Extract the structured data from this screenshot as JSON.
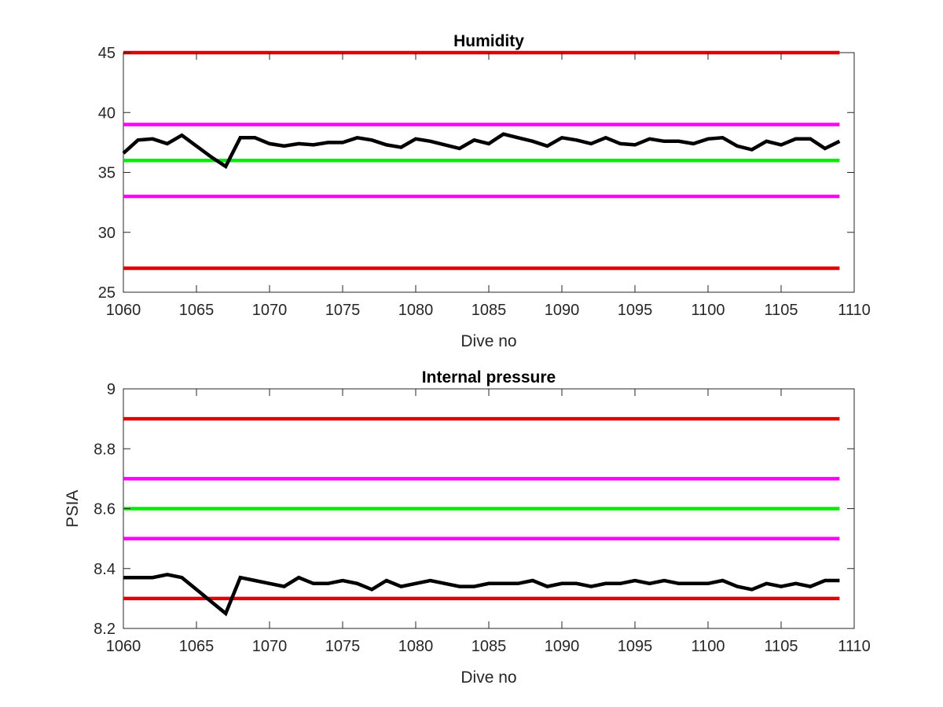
{
  "figure": {
    "background": "#ffffff"
  },
  "chart_data": [
    {
      "type": "line",
      "title": "Humidity",
      "xlabel": "Dive no",
      "ylabel": "",
      "xlim": [
        1060,
        1110
      ],
      "ylim": [
        25,
        45
      ],
      "x_ticks": [
        1060,
        1065,
        1070,
        1075,
        1080,
        1085,
        1090,
        1095,
        1100,
        1105,
        1110
      ],
      "y_ticks": [
        25,
        30,
        35,
        40,
        45
      ],
      "y_tick_labels": [
        "25",
        "30",
        "35",
        "40",
        "45"
      ],
      "grid": false,
      "reference_lines": [
        {
          "y": 45,
          "color": "#e00000"
        },
        {
          "y": 39,
          "color": "#ff00ff"
        },
        {
          "y": 36,
          "color": "#00ee00"
        },
        {
          "y": 33,
          "color": "#ff00ff"
        },
        {
          "y": 27,
          "color": "#e00000"
        }
      ],
      "series": [
        {
          "color": "#000000",
          "x": [
            1060,
            1061,
            1062,
            1063,
            1064,
            1065,
            1066,
            1067,
            1068,
            1069,
            1070,
            1071,
            1072,
            1073,
            1074,
            1075,
            1076,
            1077,
            1078,
            1079,
            1080,
            1081,
            1082,
            1083,
            1084,
            1085,
            1086,
            1087,
            1088,
            1089,
            1090,
            1091,
            1092,
            1093,
            1094,
            1095,
            1096,
            1097,
            1098,
            1099,
            1100,
            1101,
            1102,
            1103,
            1104,
            1105,
            1106,
            1107,
            1108,
            1109
          ],
          "y": [
            36.6,
            37.7,
            37.8,
            37.4,
            38.1,
            37.2,
            36.3,
            35.5,
            37.9,
            37.9,
            37.4,
            37.2,
            37.4,
            37.3,
            37.5,
            37.5,
            37.9,
            37.7,
            37.3,
            37.1,
            37.8,
            37.6,
            37.3,
            37.0,
            37.7,
            37.4,
            38.2,
            37.9,
            37.6,
            37.2,
            37.9,
            37.7,
            37.4,
            37.9,
            37.4,
            37.3,
            37.8,
            37.6,
            37.6,
            37.4,
            37.8,
            37.9,
            37.2,
            36.9,
            37.6,
            37.3,
            37.8,
            37.8,
            37.0,
            37.6
          ]
        }
      ]
    },
    {
      "type": "line",
      "title": "Internal pressure",
      "xlabel": "Dive no",
      "ylabel": "PSIA",
      "xlim": [
        1060,
        1110
      ],
      "ylim": [
        8.2,
        9
      ],
      "x_ticks": [
        1060,
        1065,
        1070,
        1075,
        1080,
        1085,
        1090,
        1095,
        1100,
        1105,
        1110
      ],
      "y_ticks": [
        8.2,
        8.4,
        8.6,
        8.8,
        9
      ],
      "y_tick_labels": [
        "8.2",
        "8.4",
        "8.6",
        "8.8",
        "9"
      ],
      "grid": false,
      "reference_lines": [
        {
          "y": 8.9,
          "color": "#e00000"
        },
        {
          "y": 8.7,
          "color": "#ff00ff"
        },
        {
          "y": 8.6,
          "color": "#00ee00"
        },
        {
          "y": 8.5,
          "color": "#ff00ff"
        },
        {
          "y": 8.3,
          "color": "#e00000"
        }
      ],
      "series": [
        {
          "color": "#000000",
          "x": [
            1060,
            1061,
            1062,
            1063,
            1064,
            1065,
            1066,
            1067,
            1068,
            1069,
            1070,
            1071,
            1072,
            1073,
            1074,
            1075,
            1076,
            1077,
            1078,
            1079,
            1080,
            1081,
            1082,
            1083,
            1084,
            1085,
            1086,
            1087,
            1088,
            1089,
            1090,
            1091,
            1092,
            1093,
            1094,
            1095,
            1096,
            1097,
            1098,
            1099,
            1100,
            1101,
            1102,
            1103,
            1104,
            1105,
            1106,
            1107,
            1108,
            1109
          ],
          "y": [
            8.37,
            8.37,
            8.37,
            8.38,
            8.37,
            8.33,
            8.29,
            8.25,
            8.37,
            8.36,
            8.35,
            8.34,
            8.37,
            8.35,
            8.35,
            8.36,
            8.35,
            8.33,
            8.36,
            8.34,
            8.35,
            8.36,
            8.35,
            8.34,
            8.34,
            8.35,
            8.35,
            8.35,
            8.36,
            8.34,
            8.35,
            8.35,
            8.34,
            8.35,
            8.35,
            8.36,
            8.35,
            8.36,
            8.35,
            8.35,
            8.35,
            8.36,
            8.34,
            8.33,
            8.35,
            8.34,
            8.35,
            8.34,
            8.36,
            8.36
          ]
        }
      ]
    }
  ]
}
